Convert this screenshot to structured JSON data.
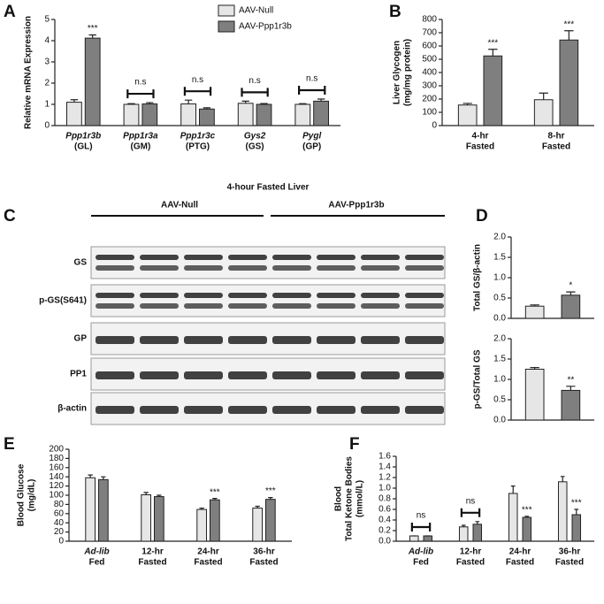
{
  "chart_data": [
    {
      "type": "bar",
      "panel": "A",
      "ylabel": "Relative mRNA Expression",
      "categories": [
        [
          "Ppp1r3b",
          "(GL)"
        ],
        [
          "Ppp1r3a",
          "(GM)"
        ],
        [
          "Ppp1r3c",
          "(PTG)"
        ],
        [
          "Gys2",
          "(GS)"
        ],
        [
          "Pygl",
          "(GP)"
        ]
      ],
      "series": [
        {
          "name": "AAV-Null",
          "color": "#e6e6e6",
          "values": [
            1.1,
            1.0,
            1.02,
            1.05,
            1.0
          ],
          "errors": [
            0.12,
            0.03,
            0.18,
            0.1,
            0.03
          ]
        },
        {
          "name": "AAV-Ppp1r3b",
          "color": "#7f7f7f",
          "values": [
            4.12,
            1.02,
            0.78,
            1.0,
            1.15
          ],
          "errors": [
            0.15,
            0.06,
            0.06,
            0.04,
            0.1
          ]
        }
      ],
      "annotations": [
        "***",
        "n.s",
        "n.s",
        "n.s",
        "n.s"
      ],
      "ylim": [
        0,
        5
      ],
      "yticks": [
        0,
        1,
        2,
        3,
        4,
        5
      ],
      "legend": "top"
    },
    {
      "type": "bar",
      "panel": "B",
      "ylabel": [
        "Liver Glycogen",
        "(mg/mg protein)"
      ],
      "categories": [
        [
          "4-hr",
          "Fasted"
        ],
        [
          "8-hr",
          "Fasted"
        ]
      ],
      "series": [
        {
          "color": "#e6e6e6",
          "values": [
            155,
            195
          ],
          "errors": [
            12,
            50
          ]
        },
        {
          "color": "#7f7f7f",
          "values": [
            525,
            645
          ],
          "errors": [
            50,
            70
          ]
        }
      ],
      "annotations": [
        "***",
        "***"
      ],
      "ylim": [
        0,
        800
      ],
      "yticks": [
        0,
        100,
        200,
        300,
        400,
        500,
        600,
        700,
        800
      ]
    },
    {
      "type": "bar",
      "panel": "D",
      "ylabel": "Total GS/β-actin",
      "series": [
        {
          "color": "#e6e6e6",
          "values": [
            0.3
          ],
          "errors": [
            0.03
          ]
        },
        {
          "color": "#7f7f7f",
          "values": [
            0.57
          ],
          "errors": [
            0.08
          ]
        }
      ],
      "annotations": [
        "*"
      ],
      "ylim": [
        0,
        2
      ],
      "yticks": [
        {
          "value": 0,
          "label": "0.0"
        },
        {
          "value": 0.5,
          "label": "0.5"
        },
        {
          "value": 1,
          "label": "1.0"
        },
        {
          "value": 1.5,
          "label": "1.5"
        },
        {
          "value": 2,
          "label": "2.0"
        }
      ]
    },
    {
      "type": "bar",
      "ylabel": "p-GS/Total GS",
      "series": [
        {
          "color": "#e6e6e6",
          "values": [
            1.25
          ],
          "errors": [
            0.04
          ]
        },
        {
          "color": "#7f7f7f",
          "values": [
            0.73
          ],
          "errors": [
            0.1
          ]
        }
      ],
      "annotations": [
        "**"
      ],
      "ylim": [
        0,
        2
      ],
      "yticks": [
        {
          "value": 0,
          "label": "0.0"
        },
        {
          "value": 0.5,
          "label": "0.5"
        },
        {
          "value": 1,
          "label": "1.0"
        },
        {
          "value": 1.5,
          "label": "1.5"
        },
        {
          "value": 2,
          "label": "2.0"
        }
      ]
    },
    {
      "type": "bar",
      "panel": "E",
      "ylabel": [
        "Blood Glucose",
        "(mg/dL)"
      ],
      "categories": [
        [
          "Ad-lib",
          "Fed"
        ],
        [
          "12-hr",
          "Fasted"
        ],
        [
          "24-hr",
          "Fasted"
        ],
        [
          "36-hr",
          "Fasted"
        ]
      ],
      "series": [
        {
          "color": "#e6e6e6",
          "values": [
            138,
            101,
            69,
            72
          ],
          "errors": [
            6,
            5,
            3,
            4
          ]
        },
        {
          "color": "#7f7f7f",
          "values": [
            134,
            97,
            90,
            91
          ],
          "errors": [
            6,
            3,
            3,
            4
          ]
        }
      ],
      "annotations": [
        null,
        null,
        "***",
        "***"
      ],
      "ylim": [
        0,
        200
      ],
      "yticks": [
        0,
        20,
        40,
        60,
        80,
        100,
        120,
        140,
        160,
        180,
        200
      ]
    },
    {
      "type": "bar",
      "panel": "F",
      "ylabel": [
        "Blood",
        "Total Ketone Bodies",
        "(mmol/L)"
      ],
      "categories": [
        [
          "Ad-lib",
          "Fed"
        ],
        [
          "12-hr",
          "Fasted"
        ],
        [
          "24-hr",
          "Fasted"
        ],
        [
          "36-hr",
          "Fasted"
        ]
      ],
      "series": [
        {
          "color": "#e6e6e6",
          "values": [
            0.1,
            0.27,
            0.9,
            1.12
          ],
          "errors": [
            0,
            0.03,
            0.14,
            0.1
          ]
        },
        {
          "color": "#7f7f7f",
          "values": [
            0.1,
            0.32,
            0.45,
            0.5
          ],
          "errors": [
            0,
            0.05,
            0.02,
            0.1
          ]
        }
      ],
      "annotations": [
        "ns",
        "ns",
        "***",
        "***"
      ],
      "ylim": [
        0,
        1.6
      ],
      "yticks": [
        {
          "value": 0,
          "label": "0.0"
        },
        {
          "value": 0.2,
          "label": "0.2"
        },
        {
          "value": 0.4,
          "label": "0.4"
        },
        {
          "value": 0.6,
          "label": "0.6"
        },
        {
          "value": 0.8,
          "label": "0.8"
        },
        {
          "value": 1,
          "label": "1.0"
        },
        {
          "value": 1.2,
          "label": "1.2"
        },
        {
          "value": 1.4,
          "label": "1.4"
        },
        {
          "value": 1.6,
          "label": "1.6"
        }
      ]
    }
  ],
  "blot": {
    "panel": "C",
    "title": "4-hour Fasted Liver",
    "groups": [
      "AAV-Null",
      "AAV-Ppp1r3b"
    ],
    "rows": [
      "GS",
      "p-GS(S641)",
      "GP",
      "PP1",
      "β-actin"
    ]
  }
}
